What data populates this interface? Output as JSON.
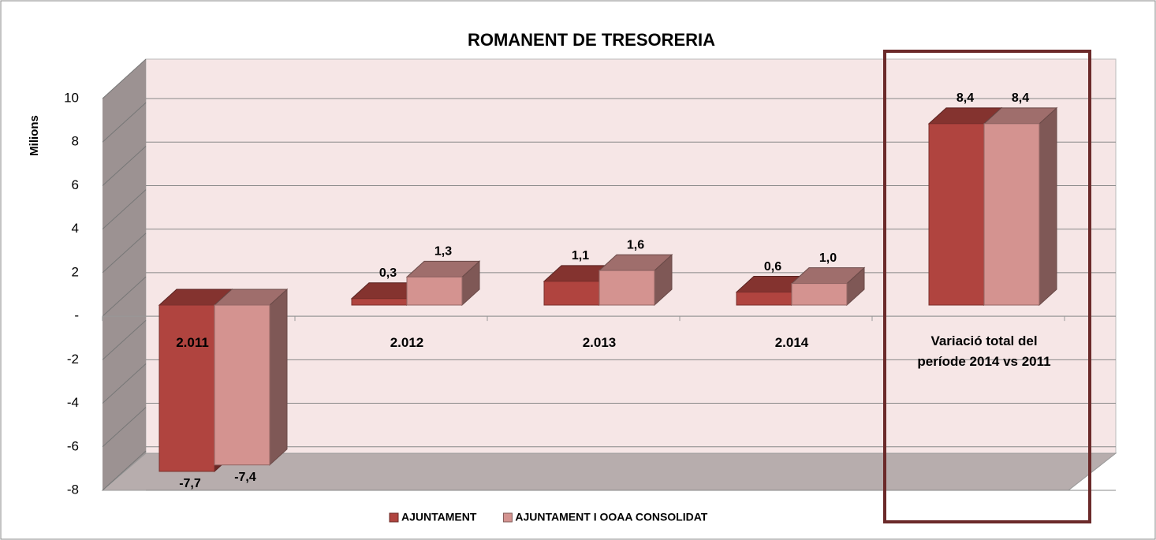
{
  "chart_data": {
    "type": "bar3d",
    "title": "ROMANENT DE TRESORERIA",
    "y_label": "Milions",
    "categories": [
      "2.011",
      "2.012",
      "2.013",
      "2.014",
      "Variació total del període 2014 vs 2011"
    ],
    "series": [
      {
        "name": "AJUNTAMENT",
        "color": "#b0443f",
        "values": [
          -7.7,
          0.3,
          1.1,
          0.6,
          8.4
        ],
        "value_labels": [
          "-7,7",
          "0,3",
          "1,1",
          "0,6",
          "8,4"
        ]
      },
      {
        "name": "AJUNTAMENT I OOAA CONSOLIDAT",
        "color": "#d49390",
        "values": [
          -7.4,
          1.3,
          1.6,
          1.0,
          8.4
        ],
        "value_labels": [
          "-7,4",
          "1,3",
          "1,6",
          "1,0",
          "8,4"
        ]
      }
    ],
    "ylim": [
      -8,
      10
    ],
    "yticks": [
      -8,
      -6,
      -4,
      -2,
      {
        "value": 0,
        "label": "-"
      },
      2,
      4,
      6,
      8,
      10
    ],
    "grid": true
  }
}
